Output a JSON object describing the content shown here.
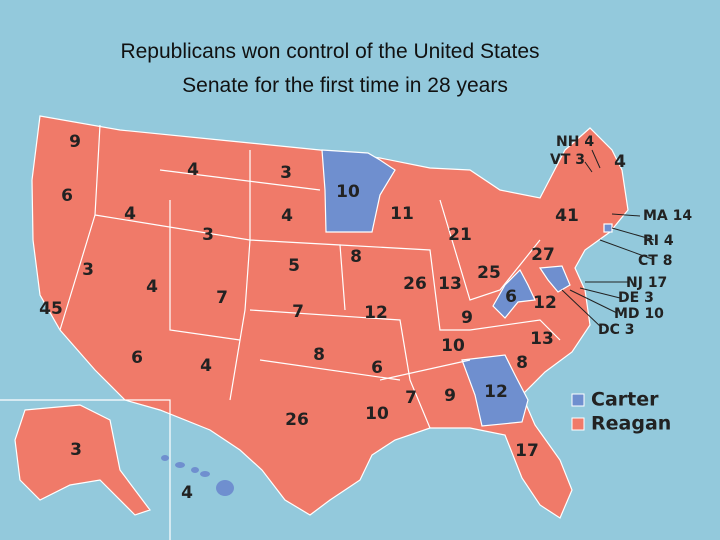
{
  "title": [
    "Republicans won control of the United States",
    "Senate for the first time in 28 years"
  ],
  "map_labels": [
    9,
    6,
    4,
    3,
    10,
    4,
    3,
    4,
    11,
    41,
    21,
    27,
    3,
    5,
    8,
    4,
    7,
    26,
    13,
    25,
    6,
    12,
    45,
    7,
    12,
    9,
    13,
    10,
    8,
    6,
    4,
    6,
    8,
    12,
    7,
    9,
    10,
    26,
    3,
    17,
    4,
    4
  ],
  "callouts": [
    {
      "state": "NH",
      "votes": 4
    },
    {
      "state": "VT",
      "votes": 3
    },
    {
      "state": "MA",
      "votes": 14
    },
    {
      "state": "RI",
      "votes": 4
    },
    {
      "state": "CT",
      "votes": 8
    },
    {
      "state": "NJ",
      "votes": 17
    },
    {
      "state": "DE",
      "votes": 3
    },
    {
      "state": "MD",
      "votes": 10
    },
    {
      "state": "DC",
      "votes": 3
    }
  ],
  "legend": [
    {
      "name": "Carter",
      "color": "#6f8fcf"
    },
    {
      "name": "Reagan",
      "color": "#f07a69"
    }
  ]
}
